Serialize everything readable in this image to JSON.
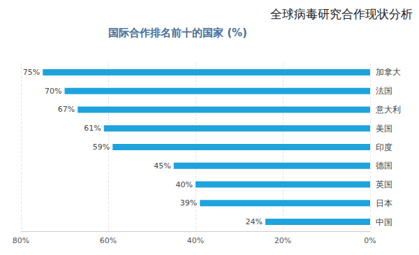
{
  "chart_data": {
    "type": "bar",
    "title": "全球病毒研究合作现状分析",
    "subtitle": "国际合作排名前十的国家 (%)",
    "orientation": "horizontal",
    "categories": [
      "加拿大",
      "法国",
      "意大利",
      "美国",
      "印度",
      "德国",
      "英国",
      "日本",
      "中国"
    ],
    "values": [
      75,
      70,
      67,
      61,
      59,
      45,
      40,
      39,
      24
    ],
    "value_labels": [
      "75%",
      "70%",
      "67%",
      "61%",
      "59%",
      "45%",
      "40%",
      "39%",
      "24%"
    ],
    "color": "#1ea3dc",
    "xlim": [
      0,
      80
    ],
    "xticks": [
      {
        "value": 0,
        "label": "0%"
      },
      {
        "value": 20,
        "label": "20%"
      },
      {
        "value": 40,
        "label": "40%"
      },
      {
        "value": 60,
        "label": "60%"
      },
      {
        "value": 80,
        "label": "80%"
      }
    ],
    "grid": true,
    "data_labels": true
  }
}
